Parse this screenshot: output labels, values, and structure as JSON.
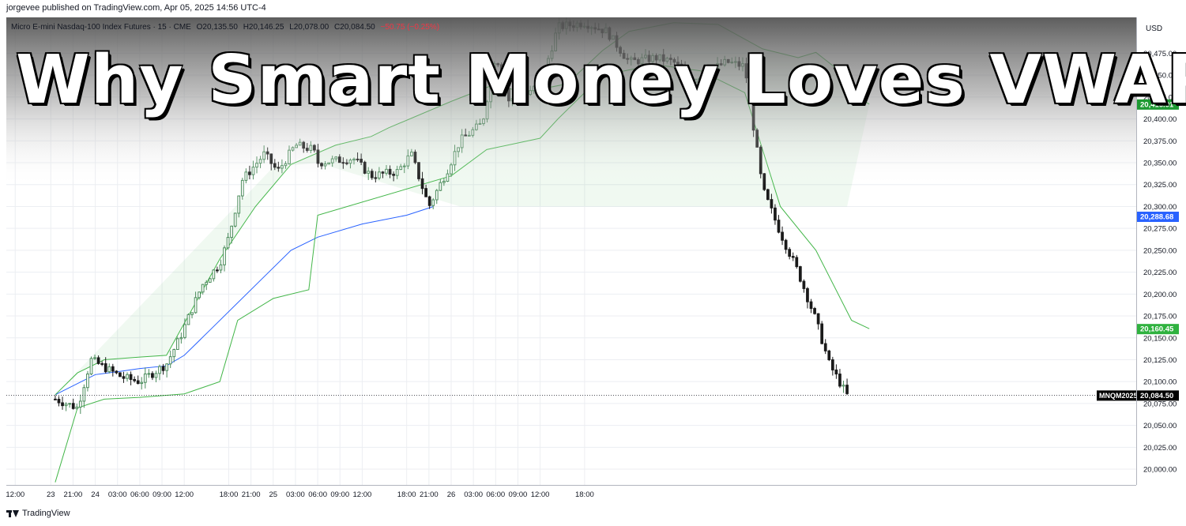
{
  "publisher_line": "jorgevee published on TradingView.com, Apr 05, 2025 14:56 UTC-4",
  "legend": {
    "instrument": "Micro E-mini Nasdaq-100 Index Futures · 15 · CME",
    "open": "O20,135.50",
    "high": "H20,146.25",
    "low": "L20,078.00",
    "close": "C20,084.50",
    "change": "−50.75 (−0.25%)"
  },
  "headline": "Why Smart Money Loves VWAP",
  "currency": "USD",
  "footer_brand": "TradingView",
  "colors": {
    "up_candle": "#4c8c5c",
    "down_candle": "#1a1a1a",
    "vwap": "#2962ff",
    "bands": "#43b649",
    "band_fill": "#43b649",
    "price_tag": "#000000",
    "upper_tag": "#1e9a32",
    "vwap_tag": "#2962ff",
    "lower_tag": "#2fb23f"
  },
  "chart_data": {
    "type": "candlestick",
    "title": "",
    "xlabel": "",
    "ylabel": "",
    "ylim": [
      19982,
      20516
    ],
    "grid": true,
    "y_ticks": [
      "20,000.00",
      "20,025.00",
      "20,050.00",
      "20,075.00",
      "20,100.00",
      "20,125.00",
      "20,150.00",
      "20,175.00",
      "20,200.00",
      "20,225.00",
      "20,250.00",
      "20,275.00",
      "20,300.00",
      "20,325.00",
      "20,350.00",
      "20,375.00",
      "20,400.00",
      "20,425.00",
      "20,450.00",
      "20,475.00"
    ],
    "x_ticks": [
      "12:00",
      "23",
      "21:00",
      "24",
      "03:00",
      "06:00",
      "09:00",
      "12:00",
      "18:00",
      "21:00",
      "25",
      "03:00",
      "06:00",
      "09:00",
      "12:00",
      "18:00",
      "21:00",
      "26",
      "03:00",
      "06:00",
      "09:00",
      "12:00",
      "18:00"
    ],
    "price_labels": {
      "last": {
        "symbol": "MNQM2025",
        "value": "20,084.50",
        "price": 20084.5
      },
      "upper_band": {
        "value": "20,416.91",
        "price": 20416.91
      },
      "vwap": {
        "value": "20,288.68",
        "price": 20288.68
      },
      "lower_band": {
        "value": "20,160.45",
        "price": 20160.45
      }
    },
    "series": [
      {
        "name": "VWAP",
        "points": [
          [
            23.05,
            20085
          ],
          [
            23.5,
            20108
          ],
          [
            23.8,
            20112
          ],
          [
            24.0,
            20115
          ],
          [
            24.3,
            20118
          ],
          [
            24.5,
            20130
          ],
          [
            24.8,
            20160
          ],
          [
            25.3,
            20210
          ],
          [
            25.7,
            20250
          ],
          [
            26.0,
            20265
          ],
          [
            26.5,
            20280
          ],
          [
            27.0,
            20290
          ],
          [
            27.3,
            20300
          ]
        ]
      },
      {
        "name": "Upper band",
        "points": [
          [
            23.05,
            20085
          ],
          [
            23.3,
            20110
          ],
          [
            23.6,
            20125
          ],
          [
            24.0,
            20128
          ],
          [
            24.3,
            20130
          ],
          [
            24.6,
            20185
          ],
          [
            24.9,
            20240
          ],
          [
            25.3,
            20300
          ],
          [
            25.7,
            20348
          ],
          [
            26.2,
            20370
          ],
          [
            26.6,
            20380
          ],
          [
            26.8,
            20390
          ],
          [
            27.5,
            20420
          ],
          [
            28.0,
            20440
          ],
          [
            28.3,
            20430
          ],
          [
            28.8,
            20440
          ],
          [
            29.2,
            20478
          ],
          [
            29.5,
            20500
          ],
          [
            30.0,
            20510
          ],
          [
            30.5,
            20508
          ],
          [
            31.0,
            20480
          ],
          [
            31.4,
            20470
          ],
          [
            31.6,
            20476
          ],
          [
            31.8,
            20460
          ],
          [
            32.0,
            20430
          ],
          [
            32.2,
            20416.91
          ]
        ]
      },
      {
        "name": "Lower band",
        "points": [
          [
            23.05,
            19985
          ],
          [
            23.3,
            20070
          ],
          [
            23.6,
            20080
          ],
          [
            24.0,
            20082
          ],
          [
            24.5,
            20086
          ],
          [
            24.9,
            20100
          ],
          [
            25.1,
            20170
          ],
          [
            25.5,
            20195
          ],
          [
            25.9,
            20205
          ],
          [
            26.0,
            20290
          ],
          [
            27.5,
            20335
          ],
          [
            27.9,
            20365
          ],
          [
            28.5,
            20378
          ],
          [
            28.7,
            20400
          ],
          [
            29.2,
            20450
          ],
          [
            29.8,
            20462
          ],
          [
            30.3,
            20455
          ],
          [
            30.8,
            20430
          ],
          [
            31.2,
            20300
          ],
          [
            31.6,
            20250
          ],
          [
            32.0,
            20170
          ],
          [
            32.2,
            20160.45
          ]
        ]
      }
    ],
    "candles_summary": {
      "start_price": 20085,
      "peak_price": 20505,
      "end_price": 20084.5
    }
  }
}
